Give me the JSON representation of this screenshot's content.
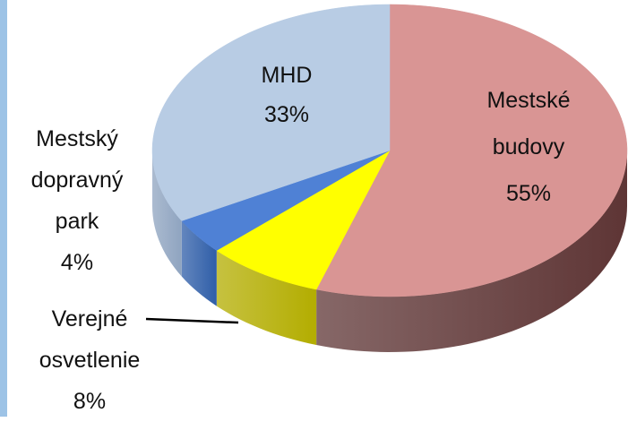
{
  "chart_data": {
    "type": "pie",
    "categories": [
      "Mestské budovy",
      "Verejné osvetlenie",
      "Mestský dopravný park",
      "MHD"
    ],
    "values": [
      55,
      8,
      4,
      33
    ],
    "value_labels": [
      "55%",
      "8%",
      "4%",
      "33%"
    ],
    "colors": [
      "#d99594",
      "#ffff00",
      "#4f81d5",
      "#b8cce4"
    ],
    "side_colors": [
      "#5e3535",
      "#b3ad00",
      "#2f5ea8",
      "#8fa4c0"
    ],
    "three_d": true,
    "start_angle": 0,
    "direction": "clockwise"
  }
}
